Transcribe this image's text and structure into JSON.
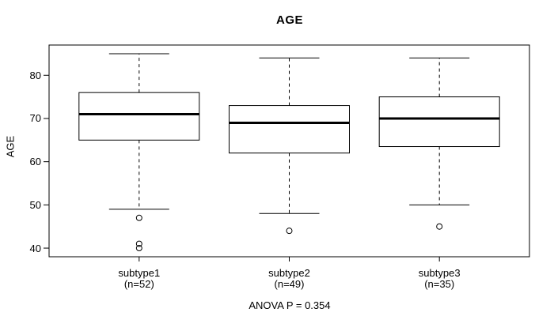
{
  "chart_data": {
    "type": "boxplot",
    "title": "AGE",
    "ylabel": "AGE",
    "xlabel": "",
    "footer": "ANOVA P = 0.354",
    "ylim": [
      38,
      87
    ],
    "yticks": [
      40,
      50,
      60,
      70,
      80
    ],
    "grid": false,
    "legend": "none",
    "style": {
      "line_color": "#000000",
      "median_color": "#000000",
      "box_fill": "#ffffff",
      "background": "#ffffff"
    },
    "groups": [
      {
        "label": "subtype1",
        "count_label": "(n=52)",
        "whisker_low": 49,
        "q1": 65,
        "median": 71,
        "q3": 76,
        "whisker_high": 85,
        "outliers": [
          47,
          41,
          40
        ]
      },
      {
        "label": "subtype2",
        "count_label": "(n=49)",
        "whisker_low": 48,
        "q1": 62,
        "median": 69,
        "q3": 73,
        "whisker_high": 84,
        "outliers": [
          44
        ]
      },
      {
        "label": "subtype3",
        "count_label": "(n=35)",
        "whisker_low": 50,
        "q1": 63.5,
        "median": 70,
        "q3": 75,
        "whisker_high": 84,
        "outliers": [
          45
        ]
      }
    ]
  }
}
